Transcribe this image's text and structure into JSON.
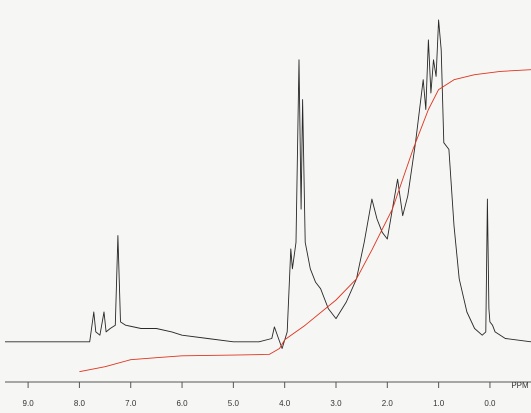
{
  "chart_data": {
    "type": "line",
    "x_label": "PPM",
    "xlim": [
      9.45,
      -0.8
    ],
    "ylim": [
      -10,
      100
    ],
    "xticks": [
      {
        "value": 9,
        "label": "9.0"
      },
      {
        "value": 8,
        "label": "8.0"
      },
      {
        "value": 7,
        "label": "7.0"
      },
      {
        "value": 6,
        "label": "6.0"
      },
      {
        "value": 5,
        "label": "5.0"
      },
      {
        "value": 4,
        "label": "4.0"
      },
      {
        "value": 3,
        "label": "3.0"
      },
      {
        "value": 2,
        "label": "2.0"
      },
      {
        "value": 1,
        "label": "1.0"
      },
      {
        "value": 0,
        "label": "0.0"
      }
    ],
    "series": [
      {
        "color": "#2a2a2a",
        "x": [
          9.45,
          7.8,
          7.72,
          7.68,
          7.6,
          7.52,
          7.48,
          7.4,
          7.3,
          7.25,
          7.2,
          7.1,
          6.8,
          6.5,
          6.2,
          6.0,
          5.5,
          5.0,
          4.5,
          4.25,
          4.2,
          4.12,
          4.05,
          3.95,
          3.88,
          3.85,
          3.78,
          3.72,
          3.68,
          3.65,
          3.6,
          3.5,
          3.4,
          3.3,
          3.15,
          3.0,
          2.8,
          2.6,
          2.45,
          2.3,
          2.2,
          2.1,
          2.0,
          1.9,
          1.8,
          1.7,
          1.6,
          1.45,
          1.3,
          1.25,
          1.2,
          1.15,
          1.1,
          1.05,
          1.0,
          0.95,
          0.9,
          0.8,
          0.7,
          0.6,
          0.45,
          0.3,
          0.15,
          0.08,
          0.05,
          0.02,
          0.0,
          -0.05,
          -0.1,
          -0.3,
          -0.8
        ],
        "values": [
          0,
          0,
          9,
          3,
          2,
          9,
          3,
          4,
          5,
          32,
          6,
          5,
          4,
          4,
          3,
          2,
          1,
          0,
          0,
          1,
          4.5,
          1,
          -2,
          3,
          28,
          22,
          30,
          85,
          40,
          73,
          30,
          22,
          18,
          16,
          10,
          7,
          12,
          19,
          30,
          43,
          37,
          33,
          31,
          40,
          49,
          38,
          44,
          60,
          79,
          70,
          91,
          75,
          85,
          80,
          97,
          88,
          60,
          58,
          35,
          19,
          9,
          4,
          2,
          3,
          43,
          10,
          6,
          5,
          3,
          1,
          0
        ]
      },
      {
        "color": "#e0351f",
        "x": [
          8.0,
          7.5,
          7.0,
          6.5,
          6.0,
          5.0,
          4.3,
          4.1,
          4.0,
          3.6,
          3.0,
          2.6,
          2.3,
          1.9,
          1.5,
          1.2,
          1.0,
          0.7,
          0.3,
          -0.2,
          -0.8
        ],
        "values": [
          -9,
          -7.5,
          -5.4,
          -4.8,
          -4.2,
          -4,
          -3.8,
          -2,
          0.6,
          5,
          12.6,
          19,
          27.7,
          40,
          58,
          70,
          76,
          79,
          80.5,
          81.5,
          82
        ]
      }
    ]
  }
}
